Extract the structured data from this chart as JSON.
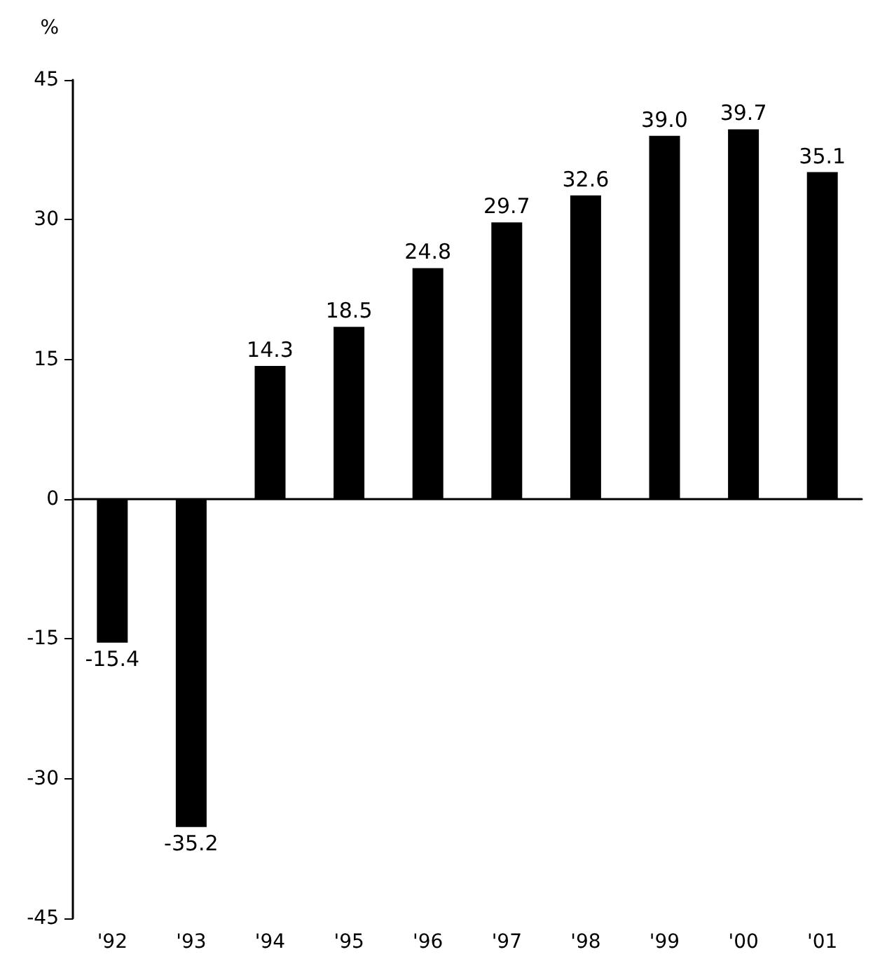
{
  "chart_data": {
    "type": "bar",
    "ylabel": "%",
    "categories": [
      "'92",
      "'93",
      "'94",
      "'95",
      "'96",
      "'97",
      "'98",
      "'99",
      "'00",
      "'01"
    ],
    "values": [
      -15.4,
      -35.2,
      14.3,
      18.5,
      24.8,
      29.7,
      32.6,
      39.0,
      39.7,
      35.1
    ],
    "value_labels": [
      "-15.4",
      "-35.2",
      "14.3",
      "18.5",
      "24.8",
      "29.7",
      "32.6",
      "39.0",
      "39.7",
      "35.1"
    ],
    "color": "#000000",
    "ylim": [
      -45,
      45
    ],
    "yticks": [
      -45,
      -30,
      -15,
      0,
      15,
      30,
      45
    ]
  }
}
